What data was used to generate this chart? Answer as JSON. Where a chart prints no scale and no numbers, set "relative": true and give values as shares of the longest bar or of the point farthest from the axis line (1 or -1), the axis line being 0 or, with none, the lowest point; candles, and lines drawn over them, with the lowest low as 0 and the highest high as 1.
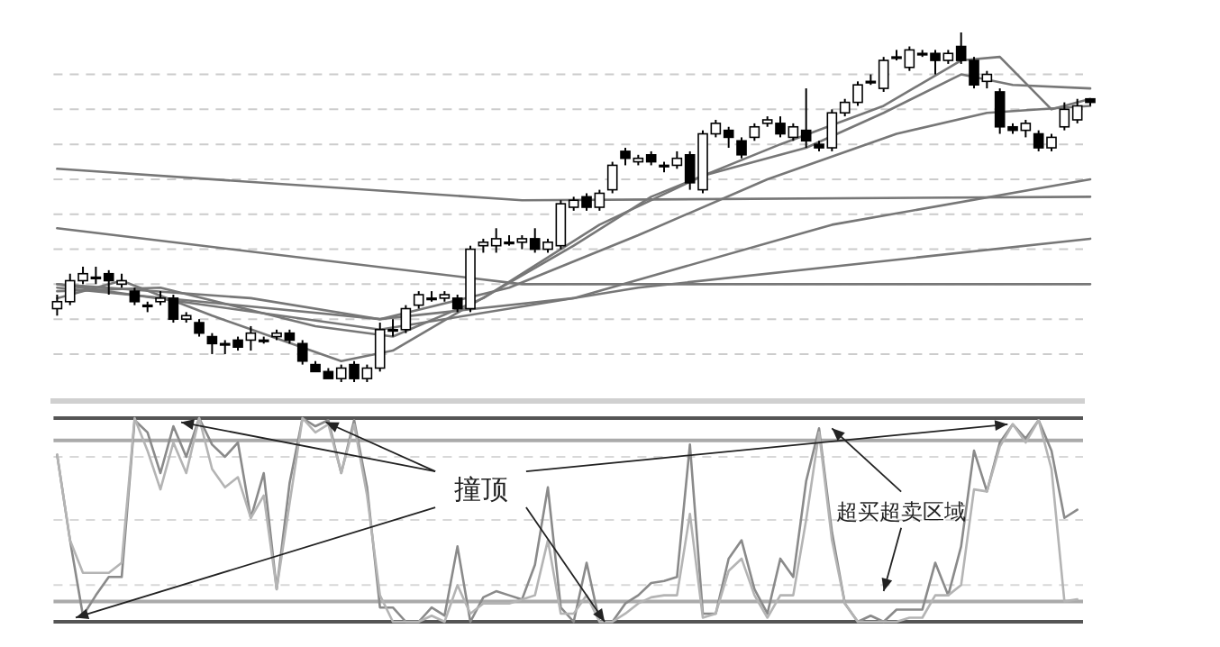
{
  "chart_data": [
    {
      "type": "candlestick",
      "relative": true,
      "categories": [
        null,
        null,
        null,
        null,
        null,
        null,
        null,
        null,
        null,
        null,
        null,
        null,
        null,
        null,
        null,
        null,
        null,
        null,
        null,
        null,
        null,
        null,
        null,
        null,
        null,
        null,
        null,
        null,
        null,
        null,
        null,
        null,
        null,
        null,
        null,
        null,
        null,
        null,
        null,
        null,
        null,
        null,
        null,
        null,
        null,
        null,
        null,
        null,
        null,
        null,
        null,
        null,
        null,
        null,
        null,
        null,
        null,
        null,
        null,
        null,
        null,
        null,
        null,
        null,
        null,
        null,
        null,
        null,
        null,
        null,
        null,
        null,
        null,
        null,
        null,
        null,
        null,
        null,
        null,
        null,
        null
      ],
      "ohlc": [
        [
          0.21,
          0.25,
          0.19,
          0.23
        ],
        [
          0.23,
          0.31,
          0.22,
          0.29
        ],
        [
          0.29,
          0.33,
          0.28,
          0.31
        ],
        [
          0.3,
          0.33,
          0.28,
          0.3
        ],
        [
          0.31,
          0.32,
          0.25,
          0.29
        ],
        [
          0.28,
          0.31,
          0.27,
          0.29
        ],
        [
          0.26,
          0.27,
          0.22,
          0.23
        ],
        [
          0.22,
          0.23,
          0.2,
          0.22
        ],
        [
          0.23,
          0.26,
          0.22,
          0.24
        ],
        [
          0.24,
          0.25,
          0.17,
          0.18
        ],
        [
          0.18,
          0.2,
          0.17,
          0.19
        ],
        [
          0.17,
          0.18,
          0.13,
          0.14
        ],
        [
          0.13,
          0.14,
          0.08,
          0.11
        ],
        [
          0.11,
          0.12,
          0.08,
          0.11
        ],
        [
          0.12,
          0.13,
          0.09,
          0.1
        ],
        [
          0.12,
          0.16,
          0.09,
          0.14
        ],
        [
          0.12,
          0.13,
          0.11,
          0.12
        ],
        [
          0.13,
          0.15,
          0.12,
          0.14
        ],
        [
          0.14,
          0.15,
          0.11,
          0.12
        ],
        [
          0.11,
          0.12,
          0.05,
          0.06
        ],
        [
          0.05,
          0.06,
          0.03,
          0.03
        ],
        [
          0.03,
          0.04,
          0.01,
          0.01
        ],
        [
          0.01,
          0.05,
          0.0,
          0.04
        ],
        [
          0.05,
          0.06,
          0.0,
          0.01
        ],
        [
          0.01,
          0.05,
          0.0,
          0.04
        ],
        [
          0.04,
          0.17,
          0.03,
          0.15
        ],
        [
          0.15,
          0.18,
          0.13,
          0.15
        ],
        [
          0.15,
          0.22,
          0.14,
          0.21
        ],
        [
          0.22,
          0.26,
          0.21,
          0.25
        ],
        [
          0.24,
          0.26,
          0.23,
          0.24
        ],
        [
          0.24,
          0.26,
          0.23,
          0.25
        ],
        [
          0.24,
          0.25,
          0.2,
          0.21
        ],
        [
          0.21,
          0.39,
          0.2,
          0.38
        ],
        [
          0.39,
          0.41,
          0.37,
          0.4
        ],
        [
          0.39,
          0.44,
          0.37,
          0.41
        ],
        [
          0.4,
          0.42,
          0.39,
          0.4
        ],
        [
          0.4,
          0.42,
          0.38,
          0.41
        ],
        [
          0.41,
          0.44,
          0.37,
          0.38
        ],
        [
          0.38,
          0.41,
          0.37,
          0.4
        ],
        [
          0.39,
          0.52,
          0.38,
          0.51
        ],
        [
          0.5,
          0.53,
          0.49,
          0.52
        ],
        [
          0.53,
          0.54,
          0.49,
          0.5
        ],
        [
          0.5,
          0.55,
          0.49,
          0.54
        ],
        [
          0.55,
          0.63,
          0.54,
          0.62
        ],
        [
          0.66,
          0.67,
          0.62,
          0.64
        ],
        [
          0.63,
          0.65,
          0.62,
          0.64
        ],
        [
          0.65,
          0.66,
          0.62,
          0.63
        ],
        [
          0.62,
          0.63,
          0.6,
          0.62
        ],
        [
          0.62,
          0.66,
          0.61,
          0.64
        ],
        [
          0.65,
          0.66,
          0.55,
          0.57
        ],
        [
          0.55,
          0.72,
          0.54,
          0.71
        ],
        [
          0.71,
          0.75,
          0.7,
          0.74
        ],
        [
          0.72,
          0.73,
          0.67,
          0.7
        ],
        [
          0.69,
          0.7,
          0.64,
          0.65
        ],
        [
          0.7,
          0.74,
          0.69,
          0.73
        ],
        [
          0.74,
          0.76,
          0.73,
          0.75
        ],
        [
          0.74,
          0.76,
          0.7,
          0.71
        ],
        [
          0.7,
          0.74,
          0.69,
          0.73
        ],
        [
          0.72,
          0.84,
          0.67,
          0.69
        ],
        [
          0.68,
          0.69,
          0.66,
          0.67
        ],
        [
          0.67,
          0.78,
          0.66,
          0.77
        ],
        [
          0.77,
          0.81,
          0.76,
          0.8
        ],
        [
          0.8,
          0.86,
          0.79,
          0.85
        ],
        [
          0.86,
          0.88,
          0.85,
          0.86
        ],
        [
          0.84,
          0.93,
          0.83,
          0.92
        ],
        [
          0.93,
          0.95,
          0.92,
          0.93
        ],
        [
          0.9,
          0.96,
          0.89,
          0.95
        ],
        [
          0.94,
          0.95,
          0.93,
          0.94
        ],
        [
          0.94,
          0.95,
          0.88,
          0.92
        ],
        [
          0.92,
          0.95,
          0.91,
          0.94
        ],
        [
          0.96,
          1.0,
          0.91,
          0.92
        ],
        [
          0.92,
          0.93,
          0.84,
          0.85
        ],
        [
          0.86,
          0.89,
          0.84,
          0.88
        ],
        [
          0.83,
          0.84,
          0.71,
          0.73
        ],
        [
          0.73,
          0.74,
          0.71,
          0.72
        ],
        [
          0.72,
          0.75,
          0.7,
          0.74
        ],
        [
          0.71,
          0.72,
          0.66,
          0.67
        ],
        [
          0.67,
          0.71,
          0.66,
          0.7
        ],
        [
          0.73,
          0.8,
          0.72,
          0.78
        ],
        [
          0.75,
          0.81,
          0.74,
          0.79
        ],
        [
          0.81,
          0.81,
          0.79,
          0.8
        ]
      ],
      "series": [
        {
          "type": "line",
          "color": "#777777",
          "values": [
            0.61,
            null,
            null,
            null,
            null,
            null,
            null,
            null,
            null,
            null,
            null,
            null,
            null,
            null,
            null,
            null,
            null,
            null,
            null,
            null,
            null,
            null,
            null,
            null,
            null,
            null,
            null,
            null,
            null,
            null,
            null,
            null,
            null,
            null,
            null,
            null,
            0.52,
            null,
            null,
            null,
            null,
            null,
            null,
            null,
            null,
            null,
            null,
            null,
            null,
            null,
            null,
            null,
            null,
            null,
            null,
            null,
            null,
            null,
            null,
            null,
            null,
            null,
            null,
            null,
            null,
            null,
            null,
            null,
            null,
            null,
            null,
            null,
            null,
            null,
            null,
            null,
            null,
            null,
            null,
            null,
            0.53
          ]
        },
        {
          "type": "line",
          "color": "#777777",
          "values": [
            0.44,
            null,
            null,
            null,
            null,
            null,
            null,
            null,
            null,
            null,
            null,
            null,
            null,
            null,
            null,
            null,
            null,
            null,
            null,
            null,
            null,
            null,
            null,
            null,
            null,
            null,
            null,
            null,
            null,
            null,
            null,
            null,
            null,
            null,
            null,
            null,
            0.28,
            null,
            null,
            null,
            null,
            null,
            null,
            null,
            null,
            null,
            null,
            null,
            null,
            null,
            null,
            null,
            null,
            null,
            null,
            null,
            null,
            null,
            null,
            null,
            null,
            null,
            null,
            null,
            null,
            null,
            null,
            null,
            null,
            null,
            null,
            null,
            null,
            null,
            null,
            null,
            null,
            null,
            null,
            null,
            0.28
          ]
        },
        {
          "type": "line",
          "color": "#777777",
          "values": [
            0.28,
            null,
            null,
            null,
            null,
            null,
            null,
            null,
            null,
            null,
            null,
            null,
            null,
            null,
            null,
            null,
            null,
            null,
            null,
            null,
            null,
            null,
            null,
            null,
            null,
            0.15,
            null,
            null,
            null,
            null,
            null,
            null,
            null,
            null,
            null,
            null,
            null,
            null,
            null,
            null,
            null,
            null,
            null,
            null,
            null,
            0.27,
            null,
            null,
            null,
            null,
            null,
            null,
            null,
            null,
            null,
            null,
            null,
            null,
            null,
            null,
            null,
            null,
            null,
            null,
            null,
            null,
            null,
            null,
            null,
            null,
            null,
            null,
            null,
            null,
            null,
            null,
            null,
            null,
            null,
            null,
            0.41
          ]
        },
        {
          "type": "line",
          "color": "#777777",
          "values": [
            0.27,
            null,
            null,
            null,
            null,
            null,
            null,
            null,
            null,
            null,
            null,
            null,
            null,
            null,
            null,
            null,
            null,
            null,
            null,
            null,
            null,
            null,
            null,
            null,
            null,
            0.18,
            null,
            null,
            null,
            null,
            null,
            null,
            null,
            null,
            null,
            null,
            null,
            null,
            null,
            null,
            0.24,
            null,
            null,
            null,
            null,
            null,
            null,
            null,
            null,
            null,
            null,
            null,
            null,
            null,
            null,
            null,
            null,
            null,
            null,
            null,
            0.45,
            null,
            null,
            null,
            null,
            null,
            null,
            null,
            null,
            null,
            null,
            null,
            null,
            null,
            null,
            null,
            null,
            null,
            null,
            null,
            0.58
          ]
        },
        {
          "type": "line",
          "color": "#777777",
          "values": [
            0.28,
            null,
            null,
            null,
            null,
            null,
            null,
            null,
            null,
            null,
            null,
            null,
            null,
            null,
            null,
            0.24,
            null,
            null,
            null,
            null,
            null,
            null,
            null,
            null,
            null,
            0.18,
            null,
            null,
            null,
            null,
            null,
            null,
            null,
            null,
            null,
            0.27,
            null,
            null,
            null,
            null,
            null,
            null,
            null,
            null,
            null,
            0.42,
            null,
            null,
            null,
            null,
            null,
            null,
            null,
            null,
            null,
            0.58,
            null,
            null,
            null,
            null,
            null,
            null,
            null,
            null,
            null,
            0.71,
            null,
            null,
            null,
            null,
            null,
            null,
            0.77,
            null,
            null,
            null,
            null,
            null,
            null,
            null,
            0.79
          ]
        },
        {
          "type": "line",
          "color": "#777777",
          "values": [
            0.26,
            null,
            null,
            null,
            null,
            null,
            null,
            null,
            0.27,
            null,
            null,
            null,
            null,
            null,
            null,
            null,
            null,
            null,
            null,
            null,
            0.16,
            null,
            null,
            null,
            null,
            null,
            0.13,
            null,
            null,
            null,
            null,
            null,
            null,
            0.24,
            null,
            null,
            null,
            null,
            null,
            null,
            null,
            null,
            0.45,
            null,
            null,
            null,
            null,
            null,
            null,
            null,
            0.59,
            null,
            null,
            null,
            null,
            null,
            null,
            null,
            0.67,
            null,
            null,
            null,
            null,
            null,
            0.77,
            null,
            null,
            null,
            null,
            null,
            0.88,
            null,
            null,
            null,
            0.85,
            null,
            null,
            null,
            null,
            null,
            0.84
          ]
        },
        {
          "type": "line",
          "color": "#777777",
          "values": [
            0.24,
            null,
            null,
            null,
            null,
            0.29,
            null,
            null,
            null,
            null,
            null,
            null,
            0.19,
            null,
            null,
            null,
            null,
            null,
            null,
            null,
            null,
            null,
            0.06,
            null,
            null,
            null,
            0.09,
            null,
            null,
            null,
            null,
            null,
            0.22,
            null,
            null,
            null,
            null,
            null,
            null,
            null,
            0.39,
            null,
            null,
            null,
            null,
            null,
            0.53,
            null,
            null,
            null,
            null,
            null,
            null,
            null,
            null,
            null,
            0.68,
            null,
            null,
            null,
            null,
            null,
            null,
            null,
            0.79,
            null,
            null,
            null,
            null,
            null,
            0.92,
            null,
            null,
            0.93,
            null,
            null,
            null,
            0.78,
            null,
            null,
            0.81
          ]
        }
      ],
      "ref_lines": [
        {
          "axis": "y",
          "value": 0.88,
          "line_style": "dashed",
          "color": "#cccccc"
        },
        {
          "axis": "y",
          "value": 0.78,
          "line_style": "dashed",
          "color": "#cccccc"
        },
        {
          "axis": "y",
          "value": 0.68,
          "line_style": "dashed",
          "color": "#cccccc"
        },
        {
          "axis": "y",
          "value": 0.58,
          "line_style": "dashed",
          "color": "#cccccc"
        },
        {
          "axis": "y",
          "value": 0.48,
          "line_style": "dashed",
          "color": "#cccccc"
        },
        {
          "axis": "y",
          "value": 0.38,
          "line_style": "dashed",
          "color": "#cccccc"
        },
        {
          "axis": "y",
          "value": 0.28,
          "line_style": "dashed",
          "color": "#cccccc"
        },
        {
          "axis": "y",
          "value": 0.18,
          "line_style": "dashed",
          "color": "#cccccc"
        },
        {
          "axis": "y",
          "value": 0.08,
          "line_style": "dashed",
          "color": "#cccccc"
        }
      ]
    },
    {
      "type": "line",
      "relative": true,
      "categories": [
        null,
        null,
        null,
        null,
        null,
        null,
        null,
        null,
        null,
        null,
        null,
        null,
        null,
        null,
        null,
        null,
        null,
        null,
        null,
        null,
        null,
        null,
        null,
        null,
        null,
        null,
        null,
        null,
        null,
        null,
        null,
        null,
        null,
        null,
        null,
        null,
        null,
        null,
        null,
        null,
        null,
        null,
        null,
        null,
        null,
        null,
        null,
        null,
        null,
        null,
        null,
        null,
        null,
        null,
        null,
        null,
        null,
        null,
        null,
        null,
        null,
        null,
        null,
        null,
        null,
        null,
        null,
        null,
        null,
        null,
        null,
        null,
        null,
        null,
        null,
        null,
        null,
        null,
        null,
        null,
        null
      ],
      "series": [
        {
          "color": "#8a8a8a",
          "values": [
            0.82,
            0.4,
            0.03,
            0.13,
            0.22,
            0.22,
            0.99,
            0.93,
            0.73,
            0.96,
            0.81,
            1.0,
            0.87,
            0.81,
            0.88,
            0.51,
            0.73,
            0.16,
            0.68,
            1.0,
            0.96,
            0.99,
            0.73,
            0.99,
            0.66,
            0.07,
            0.07,
            0,
            0,
            0.07,
            0.03,
            0.37,
            0,
            0.12,
            0.15,
            0.13,
            0.11,
            0.28,
            0.66,
            0.07,
            0,
            0.29,
            0,
            0,
            0.09,
            0.13,
            0.19,
            0.2,
            0.22,
            0.87,
            0.04,
            0.04,
            0.31,
            0.4,
            0.16,
            0.04,
            0.31,
            0.22,
            0.69,
            0.95,
            0.44,
            0.09,
            0,
            0.03,
            0,
            0.06,
            0.06,
            0.06,
            0.29,
            0.13,
            0.37,
            0.84,
            0.64,
            0.88,
            0.97,
            0.9,
            0.99,
            0.84,
            0.51,
            0.55,
            null
          ]
        },
        {
          "color": "#b4b4b4",
          "values": [
            0.82,
            0.4,
            0.24,
            0.24,
            0.24,
            0.29,
            1.0,
            0.84,
            0.65,
            0.88,
            0.73,
            1.0,
            0.75,
            0.66,
            0.71,
            0.51,
            0.62,
            0.16,
            0.58,
            1.0,
            0.93,
            0.97,
            0.73,
            0.97,
            0.62,
            0.13,
            0,
            0,
            0,
            0.03,
            0,
            0.18,
            0.04,
            0.09,
            0.09,
            0.09,
            0.11,
            0.13,
            0.4,
            0.04,
            0.04,
            0.13,
            0,
            0,
            0.04,
            0.09,
            0.12,
            0.13,
            0.13,
            0.53,
            0.02,
            0.04,
            0.25,
            0.31,
            0.13,
            0.02,
            0.13,
            0.13,
            0.5,
            0.93,
            0.4,
            0.09,
            0,
            0,
            0,
            0,
            0.02,
            0.02,
            0.13,
            0.13,
            0.18,
            0.65,
            0.64,
            0.86,
            0.97,
            0.88,
            0.99,
            0.75,
            0.1,
            0.11,
            null
          ]
        }
      ],
      "ref_lines": [
        {
          "axis": "y",
          "value": 1.0,
          "color": "#555555"
        },
        {
          "axis": "y",
          "value": 0.89,
          "color": "#aaaaaa"
        },
        {
          "axis": "y",
          "value": 0.1,
          "color": "#aaaaaa"
        },
        {
          "axis": "y",
          "value": 0.81,
          "line_style": "dashed",
          "color": "#d8d8d8"
        },
        {
          "axis": "y",
          "value": 0.5,
          "line_style": "dashed",
          "color": "#d8d8d8"
        },
        {
          "axis": "y",
          "value": 0.18,
          "line_style": "dashed",
          "color": "#d8d8d8"
        }
      ],
      "annotations": [
        "撞顶",
        "超买超卖区域"
      ]
    }
  ]
}
